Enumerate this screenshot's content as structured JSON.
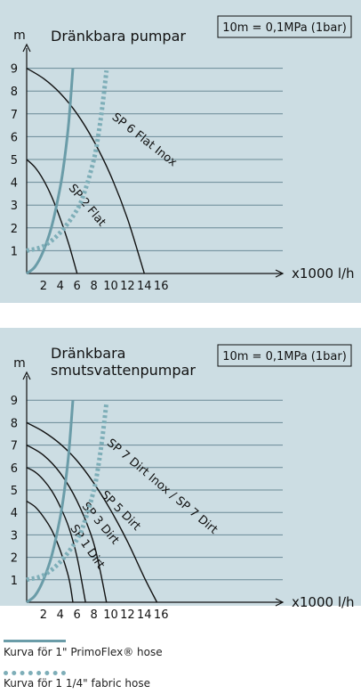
{
  "charts": [
    {
      "title": "Dränkbara pumpar",
      "note": "10m = 0,1MPa (1bar)"
    },
    {
      "title_line1": "Dränkbara",
      "title_line2": "smutsvattenpumpar",
      "note": "10m = 0,1MPa (1bar)"
    }
  ],
  "colors": {
    "panel": "#ccdde3",
    "grid": "#6a8a96",
    "axis": "#111111",
    "pump_curve": "#111111",
    "hose_1in": "#6a9ca8",
    "hose_114in": "#7eaeb8"
  },
  "legend": {
    "items": [
      {
        "label": "Kurva för 1\" PrimoFlex® hose",
        "style": "solid",
        "color": "#6a9ca8"
      },
      {
        "label": "Kurva för 1 1/4\" fabric hose",
        "style": "dotted",
        "color": "#7eaeb8"
      }
    ]
  },
  "chart_data": [
    {
      "type": "line",
      "title": "Dränkbara pumpar",
      "annotation": "10m = 0,1MPa (1bar)",
      "xlabel": "x1000 l/h",
      "ylabel": "m",
      "xlim": [
        0,
        17
      ],
      "ylim": [
        0,
        9.5
      ],
      "xticks": [
        2,
        4,
        6,
        8,
        10,
        12,
        14,
        16
      ],
      "yticks": [
        1,
        2,
        3,
        4,
        5,
        6,
        7,
        8,
        9
      ],
      "grid": "horizontal",
      "series": [
        {
          "name": "SP 6 Flat Inox",
          "kind": "pump",
          "label_angle": 38,
          "x": [
            0,
            2,
            4,
            6,
            8,
            10,
            12,
            14
          ],
          "y": [
            9,
            8.55,
            7.9,
            7,
            5.8,
            4.3,
            2.4,
            0
          ]
        },
        {
          "name": "SP 2 Flat",
          "kind": "pump",
          "label_angle": 50,
          "x": [
            0,
            1,
            2,
            3,
            4,
            5,
            6
          ],
          "y": [
            5,
            4.65,
            4.1,
            3.35,
            2.4,
            1.3,
            0
          ]
        },
        {
          "kind": "hose_1in",
          "x": [
            0,
            1,
            2,
            3,
            4,
            4.5,
            5,
            5.5
          ],
          "y": [
            0,
            0.3,
            1.0,
            2.1,
            3.8,
            5.0,
            6.6,
            9
          ]
        },
        {
          "kind": "hose_114in",
          "x": [
            0,
            2,
            4,
            6,
            7,
            8,
            8.5,
            9,
            9.5
          ],
          "y": [
            1,
            1.2,
            1.8,
            2.8,
            3.7,
            5.0,
            6.0,
            7.3,
            8.9
          ]
        }
      ]
    },
    {
      "type": "line",
      "title": "Dränkbara smutsvattenpumpar",
      "annotation": "10m = 0,1MPa (1bar)",
      "xlabel": "x1000 l/h",
      "ylabel": "m",
      "xlim": [
        0,
        17
      ],
      "ylim": [
        0,
        9.5
      ],
      "xticks": [
        2,
        4,
        6,
        8,
        10,
        12,
        14,
        16
      ],
      "yticks": [
        1,
        2,
        3,
        4,
        5,
        6,
        7,
        8,
        9
      ],
      "grid": "horizontal",
      "series": [
        {
          "name": "SP 7 Dirt Inox / SP 7 Dirt",
          "kind": "pump",
          "label_angle": 40,
          "x": [
            0,
            2,
            4,
            6,
            8,
            10,
            12,
            14,
            15.5
          ],
          "y": [
            8,
            7.6,
            7.05,
            6.3,
            5.3,
            4.1,
            2.7,
            1.1,
            0
          ]
        },
        {
          "name": "SP 5 Dirt",
          "kind": "pump",
          "label_angle": 45,
          "x": [
            0,
            2,
            4,
            6,
            8,
            9.5
          ],
          "y": [
            7,
            6.55,
            5.75,
            4.5,
            2.6,
            0
          ]
        },
        {
          "name": "SP 3 Dirt",
          "kind": "pump",
          "label_angle": 50,
          "x": [
            0,
            1,
            2,
            3,
            4,
            5,
            6,
            7
          ],
          "y": [
            6,
            5.8,
            5.45,
            4.95,
            4.25,
            3.35,
            2.0,
            0
          ]
        },
        {
          "name": "SP 1 Dirt",
          "kind": "pump",
          "label_angle": 55,
          "x": [
            0,
            1,
            2,
            3,
            4,
            5,
            5.5
          ],
          "y": [
            4.5,
            4.25,
            3.8,
            3.2,
            2.3,
            1.1,
            0
          ]
        },
        {
          "kind": "hose_1in",
          "x": [
            0,
            1,
            2,
            3,
            4,
            4.5,
            5,
            5.5
          ],
          "y": [
            0,
            0.3,
            1.0,
            2.1,
            3.8,
            5.0,
            6.6,
            9
          ]
        },
        {
          "kind": "hose_114in",
          "x": [
            0,
            2,
            4,
            6,
            7,
            8,
            8.5,
            9,
            9.5
          ],
          "y": [
            1,
            1.2,
            1.8,
            2.8,
            3.7,
            5.0,
            6.0,
            7.3,
            8.9
          ]
        }
      ]
    }
  ]
}
